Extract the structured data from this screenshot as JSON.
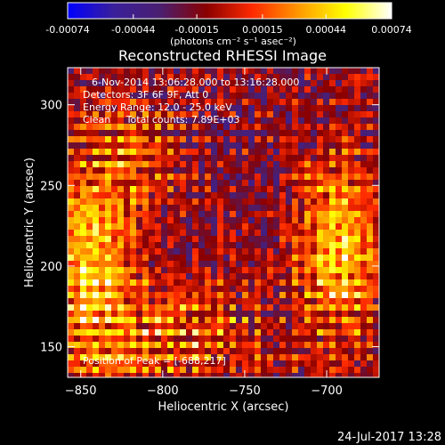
{
  "chart_data": {
    "type": "heatmap",
    "title": "Reconstructed RHESSI Image",
    "xlabel": "Heliocentric X (arcsec)",
    "ylabel": "Heliocentric Y (arcsec)",
    "xlim": [
      -858,
      -668
    ],
    "ylim": [
      131,
      323
    ],
    "x_ticks": [
      -850,
      -800,
      -750,
      -700
    ],
    "y_ticks": [
      150,
      200,
      250,
      300
    ],
    "colorbar": {
      "ticks": [
        "-0.00074",
        "-0.00044",
        "-0.00015",
        "0.00015",
        "0.00044",
        "0.00074"
      ],
      "range": [
        -0.00074,
        0.00074
      ],
      "unit_label": "(photons cm⁻² s⁻¹ asec⁻²)",
      "colormap": [
        "#0000ff",
        "#3a1f9a",
        "#4a1f70",
        "#8a0000",
        "#ff2a00",
        "#ff9900",
        "#ffff00",
        "#ffffff"
      ]
    },
    "annotations": {
      "time_range": "6-Nov-2014 13:06:28.000 to 13:16:28.000",
      "detectors": "Detectors: 3F 6F 9F, Att 0",
      "energy": "Energy Range: 12.0 - 25.0 keV",
      "clean": "Clean     Total counts: 7.89E+03",
      "peak": "Position of Peak = [-688,217]"
    },
    "peak_position": [
      -688,
      217
    ],
    "footer_timestamp": "24-Jul-2017 13:28"
  }
}
